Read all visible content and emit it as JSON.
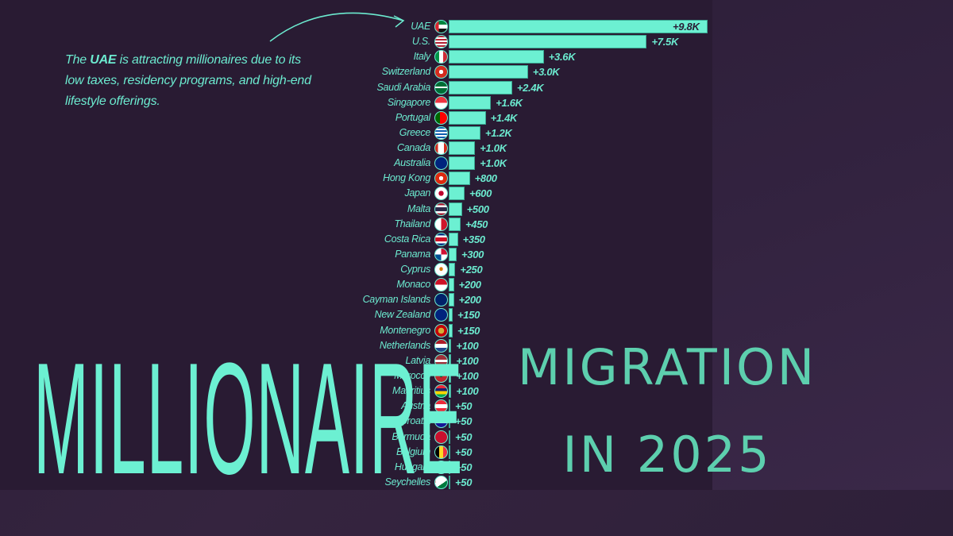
{
  "annotation": {
    "prefix": "The ",
    "highlight": "UAE",
    "suffix": " is attracting millionaires due to its low taxes, residency programs, and high-end lifestyle offerings."
  },
  "title": {
    "left": "MILLIONAIRE",
    "right_line1": "MIGRATION",
    "right_line2": "IN 2025"
  },
  "colors": {
    "accent": "#6cf0d2",
    "background": "#291b33",
    "title_right": "#5dcfae"
  },
  "chart_data": {
    "type": "bar",
    "orientation": "horizontal",
    "title": "Millionaire Migration in 2025",
    "xlabel": "",
    "ylabel": "",
    "grid": false,
    "legend": null,
    "annotation": "The UAE is attracting millionaires due to its low taxes, residency programs, and high-end lifestyle offerings.",
    "categories": [
      "UAE",
      "U.S.",
      "Italy",
      "Switzerland",
      "Saudi Arabia",
      "Singapore",
      "Portugal",
      "Greece",
      "Canada",
      "Australia",
      "Hong Kong",
      "Japan",
      "Malta",
      "Thailand",
      "Costa Rica",
      "Panama",
      "Cyprus",
      "Monaco",
      "Cayman Islands",
      "New Zealand",
      "Montenegro",
      "Netherlands",
      "Latvia",
      "Morocco",
      "Mauritius",
      "Austria",
      "Croatia",
      "Bermuda",
      "Belgium",
      "Hungary",
      "Seychelles"
    ],
    "values": [
      9800,
      7500,
      3600,
      3000,
      2400,
      1600,
      1400,
      1200,
      1000,
      1000,
      800,
      600,
      500,
      450,
      350,
      300,
      250,
      200,
      200,
      150,
      150,
      100,
      100,
      100,
      100,
      50,
      50,
      50,
      50,
      50,
      50
    ],
    "value_labels": [
      "+9.8K",
      "+7.5K",
      "+3.6K",
      "+3.0K",
      "+2.4K",
      "+1.6K",
      "+1.4K",
      "+1.2K",
      "+1.0K",
      "+1.0K",
      "+800",
      "+600",
      "+500",
      "+450",
      "+350",
      "+300",
      "+250",
      "+200",
      "+200",
      "+150",
      "+150",
      "+100",
      "+100",
      "+100",
      "+100",
      "+50",
      "+50",
      "+50",
      "+50",
      "+50",
      "+50"
    ],
    "flags": [
      "uae-flag-icon",
      "us-flag-icon",
      "italy-flag-icon",
      "switzerland-flag-icon",
      "saudi-arabia-flag-icon",
      "singapore-flag-icon",
      "portugal-flag-icon",
      "greece-flag-icon",
      "canada-flag-icon",
      "australia-flag-icon",
      "hong-kong-flag-icon",
      "japan-flag-icon",
      "thailand-flag-icon",
      "malta-flag-icon",
      "costa-rica-flag-icon",
      "panama-flag-icon",
      "cyprus-flag-icon",
      "monaco-flag-icon",
      "cayman-islands-flag-icon",
      "new-zealand-flag-icon",
      "montenegro-flag-icon",
      "netherlands-flag-icon",
      "latvia-flag-icon",
      "morocco-flag-icon",
      "mauritius-flag-icon",
      "austria-flag-icon",
      "croatia-flag-icon",
      "bermuda-flag-icon",
      "belgium-flag-icon",
      "hungary-flag-icon",
      "seychelles-flag-icon"
    ]
  }
}
